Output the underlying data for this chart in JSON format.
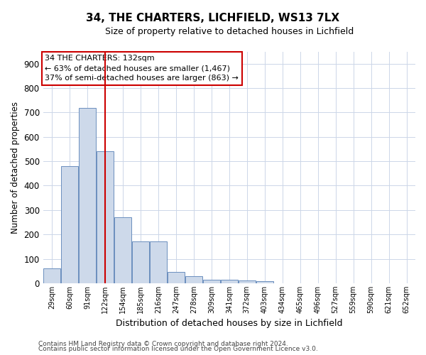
{
  "title": "34, THE CHARTERS, LICHFIELD, WS13 7LX",
  "subtitle": "Size of property relative to detached houses in Lichfield",
  "xlabel": "Distribution of detached houses by size in Lichfield",
  "ylabel": "Number of detached properties",
  "footer1": "Contains HM Land Registry data © Crown copyright and database right 2024.",
  "footer2": "Contains public sector information licensed under the Open Government Licence v3.0.",
  "bar_color": "#cdd9ea",
  "bar_edge_color": "#6b8fbe",
  "annotation_box_text": "34 THE CHARTERS: 132sqm\n← 63% of detached houses are smaller (1,467)\n37% of semi-detached houses are larger (863) →",
  "vline_color": "#cc0000",
  "vline_x_category_index": 3,
  "categories": [
    "29sqm",
    "60sqm",
    "91sqm",
    "122sqm",
    "154sqm",
    "185sqm",
    "216sqm",
    "247sqm",
    "278sqm",
    "309sqm",
    "341sqm",
    "372sqm",
    "403sqm",
    "434sqm",
    "465sqm",
    "496sqm",
    "527sqm",
    "559sqm",
    "590sqm",
    "621sqm",
    "652sqm"
  ],
  "values": [
    60,
    480,
    720,
    540,
    270,
    170,
    170,
    45,
    30,
    15,
    15,
    10,
    8,
    0,
    0,
    0,
    0,
    0,
    0,
    0,
    0
  ],
  "ylim": [
    0,
    950
  ],
  "yticks": [
    0,
    100,
    200,
    300,
    400,
    500,
    600,
    700,
    800,
    900
  ],
  "background_color": "#ffffff",
  "grid_color": "#ccd6e8",
  "title_fontsize": 11,
  "subtitle_fontsize": 9,
  "ylabel_fontsize": 8.5,
  "xlabel_fontsize": 9,
  "ytick_fontsize": 8.5,
  "xtick_fontsize": 7,
  "annot_fontsize": 8,
  "footer_fontsize": 6.5
}
